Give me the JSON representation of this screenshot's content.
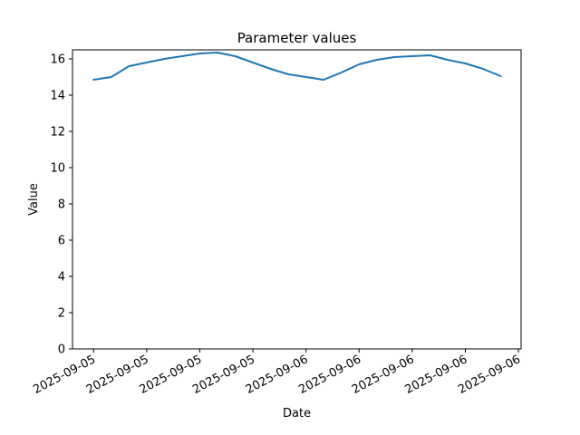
{
  "figure": {
    "title": "Parameter values",
    "xlabel": "Date",
    "ylabel": "Value"
  },
  "chart_data": {
    "type": "line",
    "title": "Parameter values",
    "xlabel": "Date",
    "ylabel": "Value",
    "grid": false,
    "legend": "none",
    "background_color": "#ffffff",
    "spine_color": "#000000",
    "text_color": "#000000",
    "tick_color": "#000000",
    "xlim_hours": [
      -1.19,
      24.15
    ],
    "ylim": [
      0,
      16.5
    ],
    "x_tick_hours": [
      0,
      3,
      6,
      9,
      12,
      15,
      18,
      21,
      24
    ],
    "x_tick_labels": [
      "2025-09-05",
      "2025-09-05",
      "2025-09-05",
      "2025-09-05",
      "2025-09-06",
      "2025-09-06",
      "2025-09-06",
      "2025-09-06",
      "2025-09-06"
    ],
    "x_tick_rotation_deg": 28,
    "y_ticks": [
      0,
      2,
      4,
      6,
      8,
      10,
      12,
      14,
      16
    ],
    "y_tick_labels": [
      "0",
      "2",
      "4",
      "6",
      "8",
      "10",
      "12",
      "14",
      "16"
    ],
    "series": [
      {
        "name": "Parameter",
        "color": "#1f77b4",
        "line_width": 2,
        "x_hours": [
          0,
          1,
          2,
          3,
          4,
          5,
          6,
          7,
          8,
          9,
          10,
          11,
          12,
          13,
          14,
          15,
          16,
          17,
          18,
          19,
          20,
          21,
          22,
          23
        ],
        "values": [
          14.85,
          15.0,
          15.6,
          15.8,
          16.0,
          16.15,
          16.3,
          16.35,
          16.15,
          15.8,
          15.45,
          15.15,
          15.0,
          14.85,
          15.25,
          15.7,
          15.95,
          16.1,
          16.15,
          16.2,
          15.95,
          15.75,
          15.45,
          15.05
        ]
      }
    ]
  }
}
